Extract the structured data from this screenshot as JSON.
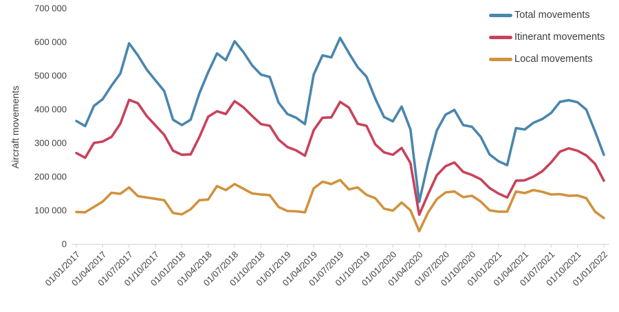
{
  "chart_data": {
    "type": "line",
    "ylabel": "Aircraft movements",
    "xlabel": "",
    "ylim": [
      0,
      700000
    ],
    "y_tick_values": [
      0,
      100000,
      200000,
      300000,
      400000,
      500000,
      600000,
      700000
    ],
    "y_tick_labels": [
      "0",
      "100 000",
      "200 000",
      "300 000",
      "400 000",
      "500 000",
      "600 000",
      "700 000"
    ],
    "x_start": "01/01/2017",
    "x_interval": "monthly",
    "x_tick_every": 3,
    "x_tick_labels": [
      "01/01/2017",
      "01/04/2017",
      "01/07/2017",
      "01/10/2017",
      "01/01/2018",
      "01/04/2018",
      "01/07/2018",
      "01/10/2018",
      "01/01/2019",
      "01/04/2019",
      "01/07/2019",
      "01/10/2019",
      "01/01/2020",
      "01/04/2020",
      "01/07/2020",
      "01/10/2020",
      "01/01/2021",
      "01/04/2021",
      "01/07/2021",
      "01/10/2021",
      "01/01/2022"
    ],
    "grid": false,
    "legend_position": "top-right",
    "series": [
      {
        "name": "Total movements",
        "color": "#4a86ad",
        "values": [
          365000,
          350000,
          410000,
          430000,
          470000,
          506000,
          596000,
          560000,
          518000,
          486000,
          454000,
          369000,
          353000,
          369000,
          448000,
          510000,
          566000,
          546000,
          602000,
          570000,
          530000,
          503000,
          496000,
          420000,
          386000,
          375000,
          356000,
          503000,
          560000,
          554000,
          612000,
          567000,
          525000,
          497000,
          432000,
          377000,
          364000,
          408000,
          340000,
          125000,
          240000,
          337000,
          384000,
          398000,
          353000,
          348000,
          318000,
          266000,
          246000,
          234000,
          344000,
          340000,
          360000,
          371000,
          389000,
          422000,
          427000,
          421000,
          399000,
          334000,
          265000
        ]
      },
      {
        "name": "Itinerant movements",
        "color": "#c8425a",
        "values": [
          270000,
          256000,
          300000,
          304000,
          318000,
          357000,
          428000,
          418000,
          380000,
          352000,
          324000,
          277000,
          265000,
          266000,
          318000,
          378000,
          394000,
          386000,
          424000,
          406000,
          380000,
          356000,
          351000,
          310000,
          288000,
          278000,
          262000,
          338000,
          375000,
          376000,
          422000,
          405000,
          357000,
          351000,
          296000,
          272000,
          265000,
          285000,
          240000,
          87000,
          147000,
          204000,
          231000,
          242000,
          214000,
          205000,
          192000,
          166000,
          150000,
          138000,
          188000,
          189000,
          200000,
          216000,
          242000,
          274000,
          284000,
          277000,
          263000,
          238000,
          188000
        ]
      },
      {
        "name": "Local movements",
        "color": "#d0923e",
        "values": [
          95000,
          94000,
          110000,
          126000,
          152000,
          149000,
          168000,
          142000,
          138000,
          134000,
          130000,
          92000,
          88000,
          103000,
          130000,
          132000,
          172000,
          160000,
          178000,
          164000,
          150000,
          147000,
          145000,
          110000,
          98000,
          97000,
          94000,
          165000,
          185000,
          178000,
          190000,
          162000,
          168000,
          146000,
          136000,
          105000,
          99000,
          123000,
          100000,
          38000,
          93000,
          133000,
          153000,
          156000,
          139000,
          143000,
          126000,
          100000,
          96000,
          96000,
          156000,
          151000,
          160000,
          155000,
          147000,
          148000,
          143000,
          144000,
          136000,
          96000,
          77000
        ]
      }
    ],
    "axis_color": "#d9d9d9",
    "tick_label_color": "#404040"
  }
}
